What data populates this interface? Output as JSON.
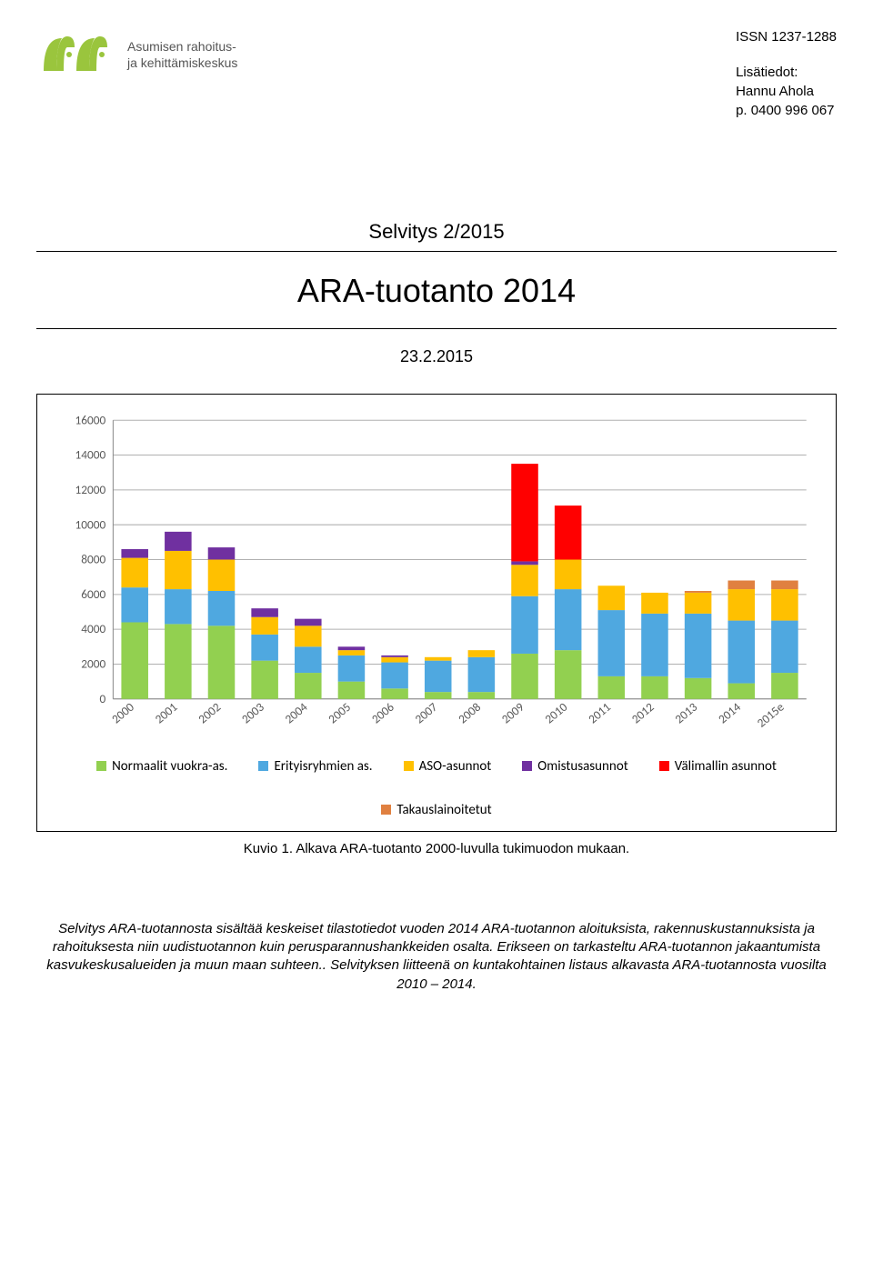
{
  "header": {
    "issn": "ISSN 1237-1288",
    "contact_label": "Lisätiedot:",
    "contact_name": "Hannu Ahola",
    "contact_phone": "p. 0400 996 067",
    "logo_subtitle_line1": "Asumisen rahoitus-",
    "logo_subtitle_line2": "ja kehittämiskeskus"
  },
  "title_block": {
    "series_line": "Selvitys 2/2015",
    "main_title": "ARA-tuotanto 2014",
    "date": "23.2.2015"
  },
  "chart": {
    "type": "stacked-bar",
    "background_color": "#ffffff",
    "grid_color": "#b0b0b0",
    "axis_color": "#8a8a8a",
    "label_fontsize": 13,
    "ylim": [
      0,
      16000
    ],
    "ytick_step": 2000,
    "yticks": [
      0,
      2000,
      4000,
      6000,
      8000,
      10000,
      12000,
      14000,
      16000
    ],
    "categories": [
      "2000",
      "2001",
      "2002",
      "2003",
      "2004",
      "2005",
      "2006",
      "2007",
      "2008",
      "2009",
      "2010",
      "2011",
      "2012",
      "2013",
      "2014",
      "2015e"
    ],
    "series_order": [
      "normaalit",
      "erityisryhmien",
      "aso",
      "omistus",
      "valimalli",
      "takaus"
    ],
    "series": {
      "normaalit": {
        "label": "Normaalit vuokra-as.",
        "color": "#92d050",
        "values": [
          4400,
          4300,
          4200,
          2200,
          1500,
          1000,
          600,
          400,
          400,
          2600,
          2800,
          1300,
          1300,
          1200,
          900,
          1500
        ]
      },
      "erityisryhmien": {
        "label": "Erityisryhmien as.",
        "color": "#4fa8e0",
        "values": [
          2000,
          2000,
          2000,
          1500,
          1500,
          1500,
          1500,
          1800,
          2000,
          3300,
          3500,
          3800,
          3600,
          3700,
          3600,
          3000
        ]
      },
      "aso": {
        "label": "ASO-asunnot",
        "color": "#ffc000",
        "values": [
          1700,
          2200,
          1800,
          1000,
          1200,
          300,
          300,
          200,
          400,
          1800,
          1700,
          1400,
          1200,
          1200,
          1800,
          1800
        ]
      },
      "omistus": {
        "label": "Omistusasunnot",
        "color": "#7030a0",
        "values": [
          500,
          1100,
          700,
          500,
          400,
          200,
          100,
          0,
          0,
          200,
          0,
          0,
          0,
          0,
          0,
          0
        ]
      },
      "valimalli": {
        "label": "Välimallin asunnot",
        "color": "#ff0000",
        "values": [
          0,
          0,
          0,
          0,
          0,
          0,
          0,
          0,
          0,
          5600,
          3100,
          0,
          0,
          0,
          0,
          0
        ]
      },
      "takaus": {
        "label": "Takauslainoitetut",
        "color": "#e08040",
        "values": [
          0,
          0,
          0,
          0,
          0,
          0,
          0,
          0,
          0,
          0,
          0,
          0,
          0,
          100,
          500,
          500
        ]
      }
    },
    "bar_width_ratio": 0.62
  },
  "caption": "Kuvio 1. Alkava ARA-tuotanto 2000-luvulla tukimuodon mukaan.",
  "abstract": "Selvitys ARA-tuotannosta sisältää keskeiset tilastotiedot vuoden 2014 ARA-tuotannon aloituksista, rakennuskustannuksista ja rahoituksesta niin uudistuotannon kuin perusparannushankkeiden osalta. Erikseen on tarkasteltu ARA-tuotannon jakaantumista kasvukeskusalueiden ja muun maan suhteen.. Selvityksen liitteenä on kuntakohtainen listaus alkavasta ARA-tuotannosta vuosilta 2010 – 2014.",
  "logo_color": "#9ac53d"
}
